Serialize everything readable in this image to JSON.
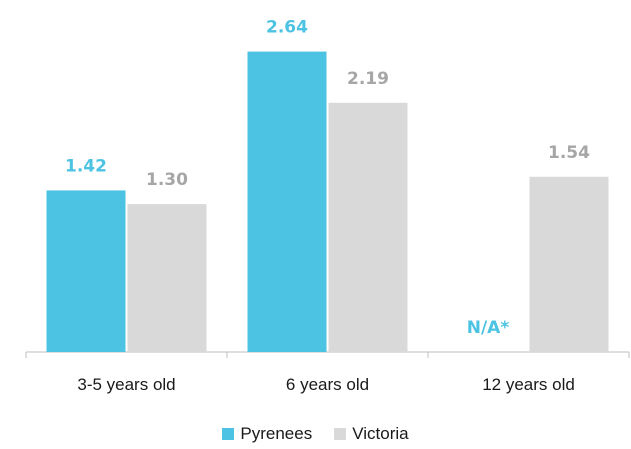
{
  "chart_data": {
    "type": "bar",
    "categories": [
      "3-5 years old",
      "6 years old",
      "12 years old"
    ],
    "series": [
      {
        "name": "Pyrenees",
        "color": "#4DC3E3",
        "values": [
          1.42,
          2.64,
          null
        ],
        "labels": [
          "1.42",
          "2.64",
          "N/A*"
        ]
      },
      {
        "name": "Victoria",
        "color": "#D9D9D9",
        "values": [
          1.3,
          2.19,
          1.54
        ],
        "labels": [
          "1.30",
          "2.19",
          "1.54"
        ]
      }
    ],
    "label_colors": {
      "Pyrenees": "#4DC3E3",
      "Victoria": "#A6A6A6"
    },
    "ylim": [
      0,
      2.9
    ],
    "grid": false,
    "legend_position": "bottom"
  }
}
